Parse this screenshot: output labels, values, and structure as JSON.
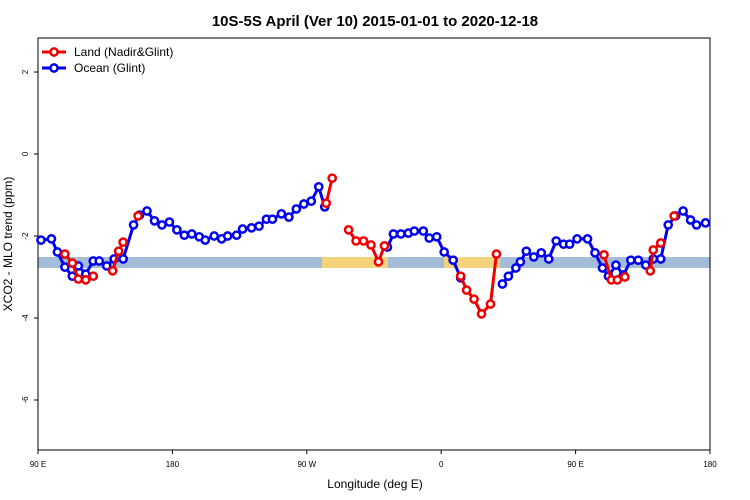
{
  "chart_data": {
    "type": "line",
    "title": "10S-5S April (Ver 10)   2015-01-01 to 2020-12-18",
    "xlabel": "Longitude (deg E)",
    "ylabel": "XCO2 - MLO trend (ppm)",
    "xlim": [
      90,
      540
    ],
    "ylim": [
      -7.22,
      2.83
    ],
    "xticks": [
      {
        "value": 90,
        "label": "90 E"
      },
      180,
      {
        "value": 270,
        "label": "90 W"
      },
      {
        "value": 360,
        "label": "0"
      },
      {
        "value": 450,
        "label": "90 E"
      },
      {
        "value": 540,
        "label": "180"
      }
    ],
    "yticks": [
      2,
      0,
      -2,
      -4,
      -6
    ],
    "legend": "top-left",
    "series": [
      {
        "name": "Ocean (Glint)",
        "color": "#0000ee",
        "x": [
          92,
          99,
          103,
          108,
          113,
          117,
          122,
          127,
          131,
          136,
          141,
          147,
          154,
          158,
          163,
          168,
          173,
          178,
          183,
          188,
          193,
          198,
          202,
          208,
          213,
          217,
          223,
          227,
          233,
          238,
          243,
          247,
          253,
          258,
          263,
          268,
          273,
          278,
          282,
          300,
          324,
          328,
          333,
          338,
          342,
          348,
          352,
          357,
          362,
          368,
          373,
          385,
          401,
          405,
          410,
          413,
          417,
          422,
          427,
          432,
          437,
          442,
          446,
          451,
          458,
          463,
          468,
          472,
          477,
          482,
          487,
          492,
          497,
          502,
          507,
          512,
          517,
          522,
          527,
          531,
          537
        ],
        "values": [
          -2.1,
          -2.07,
          -2.39,
          -2.76,
          -2.98,
          -2.73,
          -2.93,
          -2.61,
          -2.61,
          -2.73,
          -2.56,
          -2.56,
          -1.73,
          -1.49,
          -1.39,
          -1.63,
          -1.73,
          -1.66,
          -1.85,
          -1.98,
          -1.95,
          -2.02,
          -2.1,
          -2.0,
          -2.07,
          -2.0,
          -1.98,
          -1.83,
          -1.8,
          -1.76,
          -1.59,
          -1.59,
          -1.46,
          -1.54,
          -1.34,
          -1.22,
          -1.15,
          -0.8,
          -1.29,
          null,
          -2.27,
          -1.95,
          -1.95,
          -1.93,
          -1.88,
          -1.88,
          -2.05,
          -2.02,
          -2.39,
          -2.59,
          -3.02,
          null,
          -3.17,
          -2.98,
          -2.78,
          -2.63,
          -2.37,
          -2.51,
          -2.41,
          -2.56,
          -2.12,
          -2.2,
          -2.2,
          -2.07,
          -2.07,
          -2.41,
          -2.78,
          -2.98,
          -2.71,
          -2.95,
          -2.59,
          -2.59,
          -2.71,
          -2.56,
          -2.56,
          -1.73,
          -1.51,
          -1.39,
          -1.61,
          -1.73,
          -1.68
        ]
      },
      {
        "name": "Land (Nadir&Glint)",
        "color": "#ee0000",
        "x": [
          108,
          113,
          117,
          122,
          127,
          135,
          140,
          144,
          147,
          150,
          157,
          200,
          283,
          287,
          292,
          298,
          303,
          308,
          313,
          318,
          322,
          340,
          373,
          377,
          382,
          387,
          393,
          397,
          420,
          469,
          474,
          478,
          483,
          490,
          500,
          502,
          507,
          510,
          516
        ],
        "values": [
          -2.44,
          -2.66,
          -3.05,
          -3.07,
          -2.98,
          null,
          -2.85,
          -2.37,
          -2.15,
          null,
          -1.51,
          null,
          -1.2,
          -0.59,
          null,
          -1.85,
          -2.12,
          -2.12,
          -2.22,
          -2.63,
          -2.24,
          null,
          -2.98,
          -3.32,
          -3.54,
          -3.9,
          -3.66,
          -2.44,
          null,
          -2.46,
          -3.07,
          -3.07,
          -3.0,
          null,
          -2.85,
          -2.34,
          -2.17,
          null,
          -1.51
        ]
      }
    ]
  }
}
